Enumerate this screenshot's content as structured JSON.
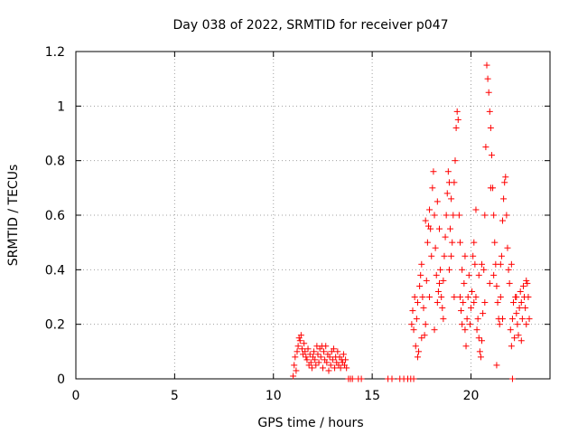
{
  "chart_data": {
    "type": "scatter",
    "title": "Day 038 of 2022, SRMTID for receiver p047",
    "xlabel": "GPS time / hours",
    "ylabel": "SRMTID / TECUs",
    "xlim": [
      0,
      24
    ],
    "ylim": [
      0,
      1.2
    ],
    "x_ticks": [
      0,
      5,
      10,
      15,
      20
    ],
    "x_tick_labels": [
      "0",
      "5",
      "10",
      "15",
      "20"
    ],
    "y_ticks": [
      0,
      0.2,
      0.4,
      0.6,
      0.8,
      1.0,
      1.2
    ],
    "y_tick_labels": [
      "0",
      "0.2",
      "0.4",
      "0.6",
      "0.8",
      "1",
      "1.2"
    ],
    "grid": true,
    "marker": "+",
    "color": "#ff0000",
    "series": [
      {
        "name": "SRMTID",
        "points": [
          [
            11.0,
            0.01
          ],
          [
            11.05,
            0.05
          ],
          [
            11.1,
            0.08
          ],
          [
            11.15,
            0.03
          ],
          [
            11.2,
            0.1
          ],
          [
            11.25,
            0.12
          ],
          [
            11.3,
            0.15
          ],
          [
            11.35,
            0.14
          ],
          [
            11.4,
            0.16
          ],
          [
            11.45,
            0.11
          ],
          [
            11.5,
            0.09
          ],
          [
            11.55,
            0.13
          ],
          [
            11.6,
            0.1
          ],
          [
            11.65,
            0.08
          ],
          [
            11.7,
            0.07
          ],
          [
            11.75,
            0.11
          ],
          [
            11.8,
            0.05
          ],
          [
            11.85,
            0.09
          ],
          [
            11.9,
            0.06
          ],
          [
            11.95,
            0.04
          ],
          [
            12.0,
            0.08
          ],
          [
            12.05,
            0.1
          ],
          [
            12.1,
            0.07
          ],
          [
            12.15,
            0.05
          ],
          [
            12.2,
            0.12
          ],
          [
            12.25,
            0.09
          ],
          [
            12.3,
            0.06
          ],
          [
            12.35,
            0.11
          ],
          [
            12.4,
            0.08
          ],
          [
            12.45,
            0.12
          ],
          [
            12.5,
            0.04
          ],
          [
            12.55,
            0.1
          ],
          [
            12.6,
            0.07
          ],
          [
            12.65,
            0.12
          ],
          [
            12.7,
            0.06
          ],
          [
            12.75,
            0.09
          ],
          [
            12.8,
            0.03
          ],
          [
            12.85,
            0.08
          ],
          [
            12.9,
            0.05
          ],
          [
            12.95,
            0.1
          ],
          [
            13.0,
            0.07
          ],
          [
            13.05,
            0.11
          ],
          [
            13.1,
            0.04
          ],
          [
            13.15,
            0.08
          ],
          [
            13.2,
            0.06
          ],
          [
            13.25,
            0.1
          ],
          [
            13.3,
            0.05
          ],
          [
            13.35,
            0.08
          ],
          [
            13.4,
            0.04
          ],
          [
            13.45,
            0.07
          ],
          [
            13.5,
            0.06
          ],
          [
            13.55,
            0.09
          ],
          [
            13.6,
            0.05
          ],
          [
            13.65,
            0.07
          ],
          [
            13.7,
            0.04
          ],
          [
            13.8,
            0.0
          ],
          [
            13.9,
            0.0
          ],
          [
            14.0,
            0.0
          ],
          [
            14.3,
            0.0
          ],
          [
            14.45,
            0.0
          ],
          [
            15.8,
            0.0
          ],
          [
            16.0,
            0.0
          ],
          [
            16.4,
            0.0
          ],
          [
            16.6,
            0.0
          ],
          [
            16.8,
            0.0
          ],
          [
            16.95,
            0.0
          ],
          [
            17.1,
            0.0
          ],
          [
            17.0,
            0.2
          ],
          [
            17.05,
            0.25
          ],
          [
            17.1,
            0.18
          ],
          [
            17.15,
            0.3
          ],
          [
            17.2,
            0.12
          ],
          [
            17.25,
            0.22
          ],
          [
            17.3,
            0.28
          ],
          [
            17.35,
            0.1
          ],
          [
            17.4,
            0.34
          ],
          [
            17.45,
            0.38
          ],
          [
            17.5,
            0.42
          ],
          [
            17.55,
            0.3
          ],
          [
            17.6,
            0.26
          ],
          [
            17.65,
            0.16
          ],
          [
            17.7,
            0.2
          ],
          [
            17.75,
            0.36
          ],
          [
            17.8,
            0.5
          ],
          [
            17.85,
            0.56
          ],
          [
            17.9,
            0.62
          ],
          [
            17.95,
            0.55
          ],
          [
            18.0,
            0.45
          ],
          [
            18.05,
            0.7
          ],
          [
            18.1,
            0.76
          ],
          [
            18.15,
            0.6
          ],
          [
            18.2,
            0.48
          ],
          [
            18.25,
            0.38
          ],
          [
            18.3,
            0.28
          ],
          [
            18.35,
            0.32
          ],
          [
            18.4,
            0.35
          ],
          [
            18.45,
            0.4
          ],
          [
            18.5,
            0.3
          ],
          [
            18.55,
            0.26
          ],
          [
            18.6,
            0.22
          ],
          [
            18.65,
            0.45
          ],
          [
            18.7,
            0.52
          ],
          [
            18.75,
            0.6
          ],
          [
            18.8,
            0.68
          ],
          [
            18.85,
            0.76
          ],
          [
            18.9,
            0.72
          ],
          [
            18.95,
            0.55
          ],
          [
            19.0,
            0.45
          ],
          [
            19.05,
            0.5
          ],
          [
            19.1,
            0.6
          ],
          [
            19.15,
            0.72
          ],
          [
            19.2,
            0.8
          ],
          [
            19.25,
            0.92
          ],
          [
            19.3,
            0.98
          ],
          [
            19.35,
            0.95
          ],
          [
            19.4,
            0.6
          ],
          [
            19.45,
            0.3
          ],
          [
            19.5,
            0.25
          ],
          [
            19.55,
            0.2
          ],
          [
            19.6,
            0.28
          ],
          [
            19.65,
            0.35
          ],
          [
            19.7,
            0.18
          ],
          [
            19.75,
            0.12
          ],
          [
            19.8,
            0.22
          ],
          [
            19.85,
            0.3
          ],
          [
            19.9,
            0.38
          ],
          [
            19.95,
            0.2
          ],
          [
            20.0,
            0.26
          ],
          [
            20.05,
            0.32
          ],
          [
            20.1,
            0.45
          ],
          [
            20.15,
            0.5
          ],
          [
            20.2,
            0.42
          ],
          [
            20.25,
            0.3
          ],
          [
            20.3,
            0.18
          ],
          [
            20.35,
            0.22
          ],
          [
            20.4,
            0.15
          ],
          [
            20.45,
            0.1
          ],
          [
            20.5,
            0.08
          ],
          [
            20.55,
            0.14
          ],
          [
            20.6,
            0.24
          ],
          [
            20.65,
            0.4
          ],
          [
            20.7,
            0.6
          ],
          [
            20.75,
            0.85
          ],
          [
            20.8,
            1.15
          ],
          [
            20.85,
            1.1
          ],
          [
            20.9,
            1.05
          ],
          [
            20.95,
            0.98
          ],
          [
            21.0,
            0.92
          ],
          [
            21.05,
            0.82
          ],
          [
            21.1,
            0.7
          ],
          [
            21.15,
            0.6
          ],
          [
            21.2,
            0.5
          ],
          [
            21.25,
            0.42
          ],
          [
            21.3,
            0.34
          ],
          [
            21.35,
            0.28
          ],
          [
            21.4,
            0.22
          ],
          [
            21.45,
            0.2
          ],
          [
            21.5,
            0.3
          ],
          [
            21.55,
            0.45
          ],
          [
            21.6,
            0.58
          ],
          [
            21.65,
            0.66
          ],
          [
            21.7,
            0.72
          ],
          [
            21.75,
            0.74
          ],
          [
            21.8,
            0.6
          ],
          [
            21.85,
            0.48
          ],
          [
            21.9,
            0.4
          ],
          [
            21.95,
            0.35
          ],
          [
            22.0,
            0.18
          ],
          [
            22.05,
            0.12
          ],
          [
            22.1,
            0.22
          ],
          [
            22.15,
            0.28
          ],
          [
            22.2,
            0.15
          ],
          [
            22.25,
            0.3
          ],
          [
            22.3,
            0.24
          ],
          [
            22.35,
            0.2
          ],
          [
            22.4,
            0.16
          ],
          [
            22.45,
            0.26
          ],
          [
            22.5,
            0.32
          ],
          [
            22.55,
            0.28
          ],
          [
            22.6,
            0.22
          ],
          [
            22.65,
            0.34
          ],
          [
            22.7,
            0.3
          ],
          [
            22.75,
            0.26
          ],
          [
            22.8,
            0.2
          ],
          [
            22.85,
            0.35
          ],
          [
            22.9,
            0.3
          ],
          [
            22.95,
            0.22
          ],
          [
            22.1,
            0.0
          ],
          [
            21.3,
            0.05
          ],
          [
            20.95,
            0.35
          ],
          [
            20.4,
            0.38
          ],
          [
            19.7,
            0.45
          ],
          [
            18.9,
            0.4
          ],
          [
            18.4,
            0.55
          ],
          [
            17.9,
            0.3
          ],
          [
            17.5,
            0.15
          ],
          [
            17.3,
            0.08
          ],
          [
            18.15,
            0.18
          ],
          [
            18.6,
            0.36
          ],
          [
            19.15,
            0.3
          ],
          [
            19.55,
            0.4
          ],
          [
            20.25,
            0.62
          ],
          [
            20.7,
            0.28
          ],
          [
            21.15,
            0.38
          ],
          [
            21.6,
            0.22
          ],
          [
            22.05,
            0.42
          ],
          [
            22.55,
            0.14
          ],
          [
            17.7,
            0.58
          ],
          [
            18.3,
            0.65
          ],
          [
            19.0,
            0.66
          ],
          [
            19.45,
            0.5
          ],
          [
            20.15,
            0.28
          ],
          [
            20.55,
            0.42
          ],
          [
            21.0,
            0.7
          ],
          [
            21.5,
            0.42
          ],
          [
            22.3,
            0.3
          ],
          [
            22.8,
            0.36
          ]
        ]
      }
    ]
  }
}
